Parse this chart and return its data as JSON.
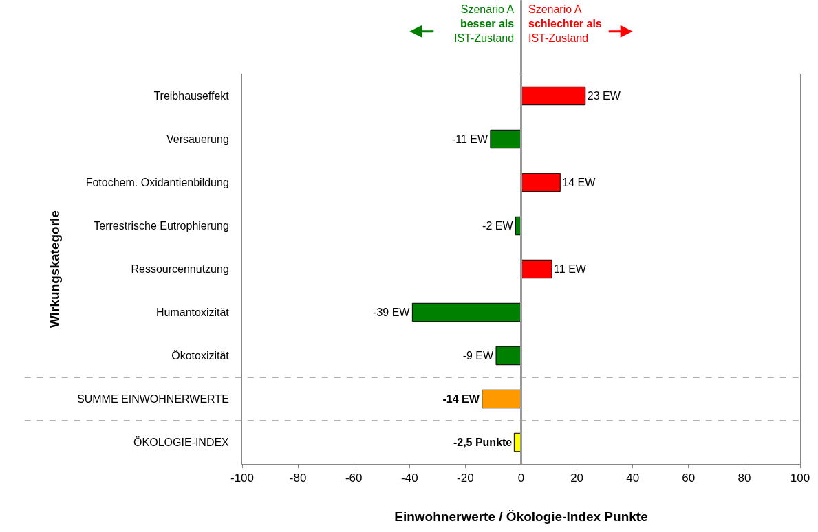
{
  "chart_data": {
    "type": "bar",
    "orientation": "horizontal",
    "categories": [
      "Treibhauseffekt",
      "Versauerung",
      "Fotochem. Oxidantienbildung",
      "Terrestrische Eutrophierung",
      "Ressourcennutzung",
      "Humantoxizität",
      "Ökotoxizität",
      "SUMME EINWOHNERWERTE",
      "ÖKOLOGIE-INDEX"
    ],
    "values": [
      23,
      -11,
      14,
      -2,
      11,
      -39,
      -9,
      -14,
      -2.5
    ],
    "colors": [
      "#ff0000",
      "#008000",
      "#ff0000",
      "#008000",
      "#ff0000",
      "#008000",
      "#008000",
      "#ff9900",
      "#ffff00"
    ],
    "value_labels": [
      "23 EW",
      "-11 EW",
      "14 EW",
      "-2 EW",
      "11 EW",
      "-39 EW",
      "-9 EW",
      "-14 EW",
      "-2,5 Punkte"
    ],
    "xlabel": "Einwohnerwerte / Ökologie-Index Punkte",
    "ylabel": "Wirkungskategorie",
    "xlim": [
      -100,
      100
    ],
    "xticks": [
      -100,
      -80,
      -60,
      -40,
      -20,
      0,
      20,
      40,
      60,
      80,
      100
    ],
    "annotations": [
      "Szenario A\nbesser als\nIST-Zustand",
      "Szenario A\nschlechter als\nIST-Zustand"
    ]
  }
}
